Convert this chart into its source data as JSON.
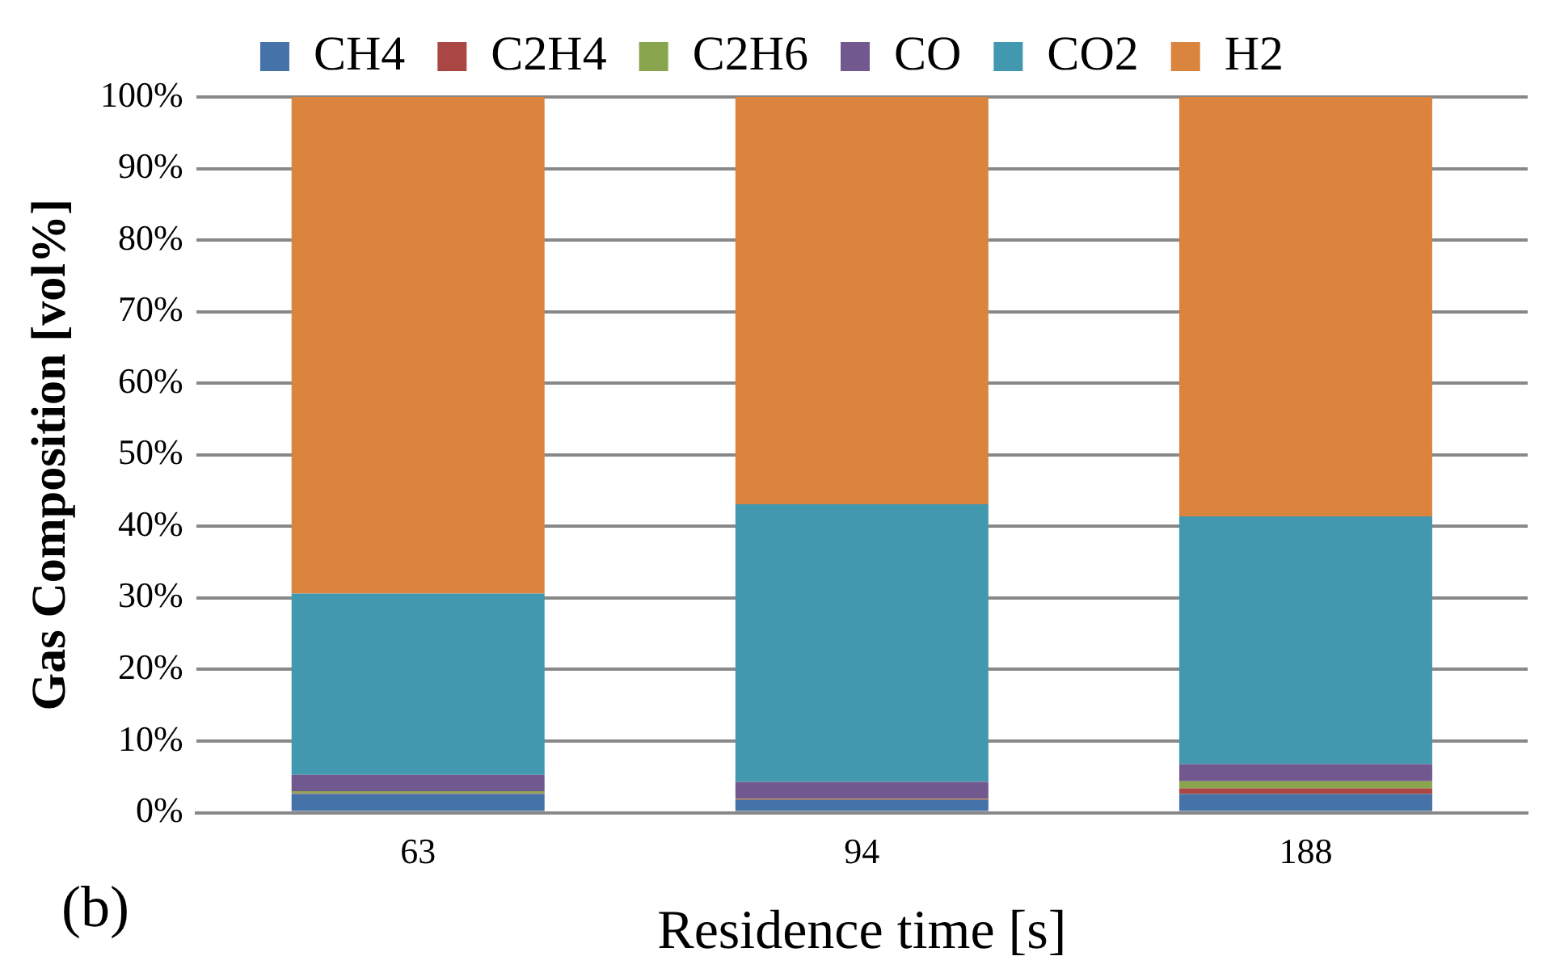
{
  "chart_data": {
    "type": "bar",
    "stacked": true,
    "xlabel": "Residence time [s]",
    "ylabel": "Gas Composition [vol%]",
    "annotations": [
      "(b)"
    ],
    "categories": [
      "63",
      "94",
      "188"
    ],
    "series": [
      {
        "name": "CH4",
        "color": "#4572a7",
        "values": [
          2.6,
          1.8,
          2.6
        ]
      },
      {
        "name": "C2H4",
        "color": "#aa4643",
        "values": [
          0.1,
          0.1,
          0.8
        ]
      },
      {
        "name": "C2H6",
        "color": "#89a54e",
        "values": [
          0.3,
          0.1,
          1.0
        ]
      },
      {
        "name": "CO",
        "color": "#71588f",
        "values": [
          2.3,
          2.3,
          2.4
        ]
      },
      {
        "name": "CO2",
        "color": "#4198af",
        "values": [
          25.3,
          38.8,
          34.6
        ]
      },
      {
        "name": "H2",
        "color": "#db843d",
        "values": [
          69.4,
          56.9,
          58.6
        ]
      }
    ],
    "ylim": [
      0,
      100
    ],
    "yticks": [
      {
        "value": 0,
        "label": "0%"
      },
      {
        "value": 10,
        "label": "10%"
      },
      {
        "value": 20,
        "label": "20%"
      },
      {
        "value": 30,
        "label": "30%"
      },
      {
        "value": 40,
        "label": "40%"
      },
      {
        "value": 50,
        "label": "50%"
      },
      {
        "value": 60,
        "label": "60%"
      },
      {
        "value": 70,
        "label": "70%"
      },
      {
        "value": 80,
        "label": "80%"
      },
      {
        "value": 90,
        "label": "90%"
      },
      {
        "value": 100,
        "label": "100%"
      }
    ],
    "grid": "y",
    "legend": "top"
  }
}
